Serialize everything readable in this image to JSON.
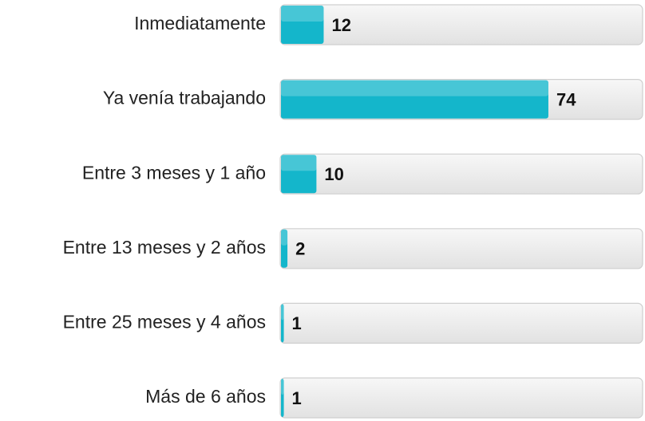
{
  "chart_data": {
    "type": "bar",
    "orientation": "horizontal",
    "categories": [
      "Inmediatamente",
      "Ya venía trabajando",
      "Entre 3 meses y 1 año",
      "Entre 13 meses y 2 años",
      "Entre 25 meses y 4 años",
      "Más de 6 años"
    ],
    "values": [
      12,
      74,
      10,
      2,
      1,
      1
    ],
    "color": "#14b6cb",
    "xlim": [
      0,
      100
    ]
  }
}
